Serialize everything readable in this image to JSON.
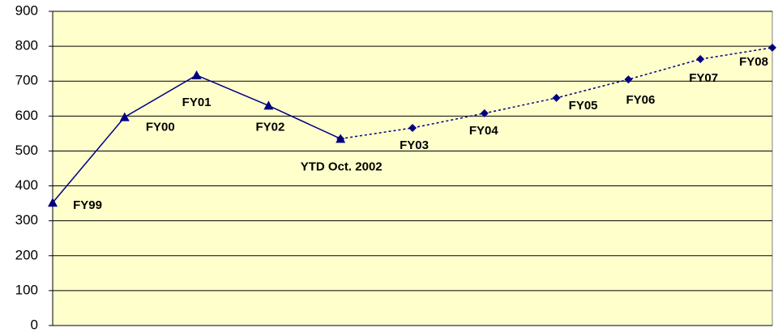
{
  "chart_data": {
    "type": "line",
    "categories": [
      "FY99",
      "FY00",
      "FY01",
      "FY02",
      "YTD Oct. 2002",
      "FY03",
      "FY04",
      "FY05",
      "FY06",
      "FY07",
      "FY08"
    ],
    "series": [
      {
        "color": "#000080",
        "marker": "triangle",
        "dash": false,
        "values": [
          352,
          597,
          717,
          630,
          535,
          null,
          null,
          null,
          null,
          null,
          null
        ]
      },
      {
        "color": "#000080",
        "marker": "diamond",
        "dash": true,
        "values": [
          null,
          null,
          null,
          null,
          535,
          566,
          608,
          652,
          705,
          763,
          796
        ]
      }
    ],
    "ylim": [
      0,
      900
    ],
    "yticks": [
      0,
      100,
      200,
      300,
      400,
      500,
      600,
      700,
      800,
      900
    ],
    "grid": true,
    "background": "#ffffcc"
  }
}
